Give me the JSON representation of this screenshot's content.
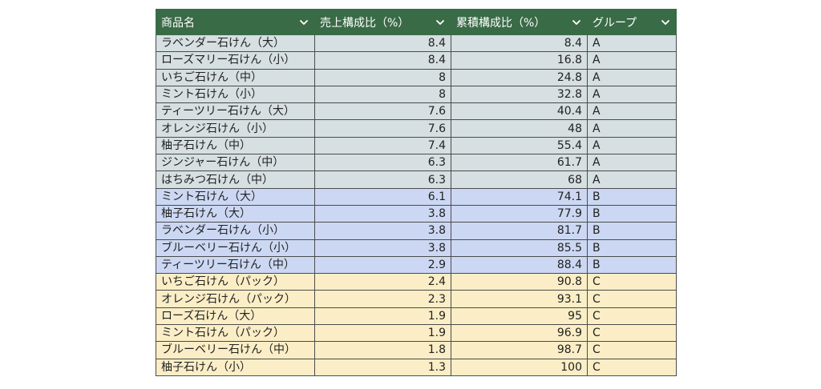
{
  "headers": [
    {
      "label": "商品名"
    },
    {
      "label": "売上構成比（%）"
    },
    {
      "label": "累積構成比（%）"
    },
    {
      "label": "グループ"
    }
  ],
  "rows": [
    {
      "name": "ラベンダー石けん（大）",
      "share": "8.4",
      "cumulative": "8.4",
      "group": "A"
    },
    {
      "name": "ローズマリー石けん（小）",
      "share": "8.4",
      "cumulative": "16.8",
      "group": "A"
    },
    {
      "name": "いちご石けん（中）",
      "share": "8",
      "cumulative": "24.8",
      "group": "A"
    },
    {
      "name": "ミント石けん（小）",
      "share": "8",
      "cumulative": "32.8",
      "group": "A"
    },
    {
      "name": "ティーツリー石けん（大）",
      "share": "7.6",
      "cumulative": "40.4",
      "group": "A"
    },
    {
      "name": "オレンジ石けん（小）",
      "share": "7.6",
      "cumulative": "48",
      "group": "A"
    },
    {
      "name": "柚子石けん（中）",
      "share": "7.4",
      "cumulative": "55.4",
      "group": "A"
    },
    {
      "name": "ジンジャー石けん（中）",
      "share": "6.3",
      "cumulative": "61.7",
      "group": "A"
    },
    {
      "name": "はちみつ石けん（中）",
      "share": "6.3",
      "cumulative": "68",
      "group": "A"
    },
    {
      "name": "ミント石けん（大）",
      "share": "6.1",
      "cumulative": "74.1",
      "group": "B"
    },
    {
      "name": "柚子石けん（大）",
      "share": "3.8",
      "cumulative": "77.9",
      "group": "B"
    },
    {
      "name": "ラベンダー石けん（小）",
      "share": "3.8",
      "cumulative": "81.7",
      "group": "B"
    },
    {
      "name": "ブルーベリー石けん（小）",
      "share": "3.8",
      "cumulative": "85.5",
      "group": "B"
    },
    {
      "name": "ティーツリー石けん（中）",
      "share": "2.9",
      "cumulative": "88.4",
      "group": "B"
    },
    {
      "name": "いちご石けん（パック）",
      "share": "2.4",
      "cumulative": "90.8",
      "group": "C"
    },
    {
      "name": "オレンジ石けん（パック）",
      "share": "2.3",
      "cumulative": "93.1",
      "group": "C"
    },
    {
      "name": "ローズ石けん（大）",
      "share": "1.9",
      "cumulative": "95",
      "group": "C"
    },
    {
      "name": "ミント石けん（パック）",
      "share": "1.9",
      "cumulative": "96.9",
      "group": "C"
    },
    {
      "name": "ブルーベリー石けん（中）",
      "share": "1.8",
      "cumulative": "98.7",
      "group": "C"
    },
    {
      "name": "柚子石けん（小）",
      "share": "1.3",
      "cumulative": "100",
      "group": "C"
    }
  ],
  "icons": {
    "filter": "chevron-down-icon"
  },
  "colors": {
    "header_bg": "#3a6b47",
    "group_A": "#d6dfe1",
    "group_B": "#ccd8f3",
    "group_C": "#fbeec6"
  }
}
